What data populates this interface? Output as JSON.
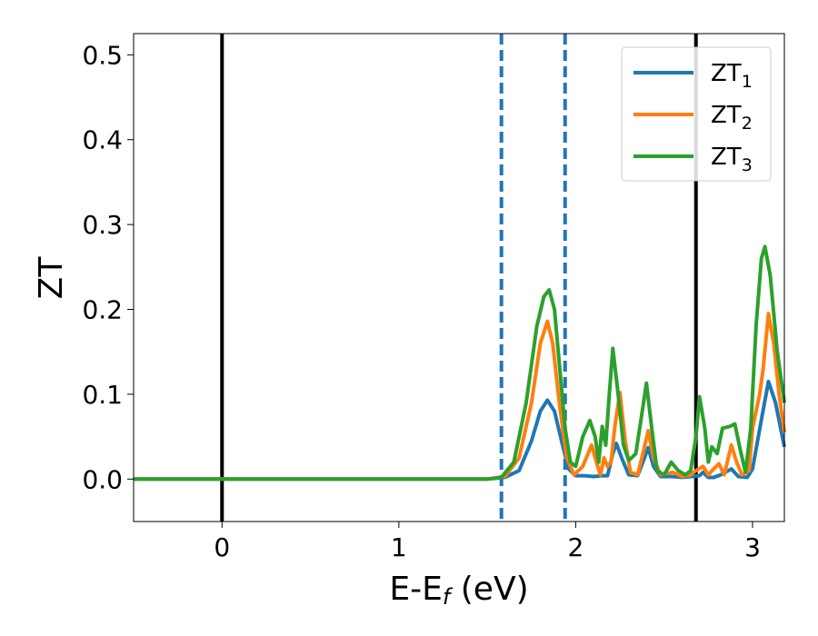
{
  "chart_data": {
    "type": "line",
    "xlabel": "E-E",
    "xlabel_sub": "f",
    "xlabel_unit": "(eV)",
    "ylabel": "ZT",
    "xlim": [
      -0.5,
      3.18
    ],
    "ylim": [
      -0.05,
      0.525
    ],
    "xticks": [
      {
        "value": 0,
        "label": "0"
      },
      {
        "value": 1,
        "label": "1"
      },
      {
        "value": 2,
        "label": "2"
      },
      {
        "value": 3,
        "label": "3"
      }
    ],
    "yticks": [
      {
        "value": 0.0,
        "label": "0.0"
      },
      {
        "value": 0.1,
        "label": "0.1"
      },
      {
        "value": 0.2,
        "label": "0.2"
      },
      {
        "value": 0.3,
        "label": "0.3"
      },
      {
        "value": 0.4,
        "label": "0.4"
      },
      {
        "value": 0.5,
        "label": "0.5"
      }
    ],
    "grid": false,
    "legend_position": "top-right",
    "vlines": [
      {
        "x": 0.0,
        "style": "solid",
        "color": "#000000"
      },
      {
        "x": 2.68,
        "style": "solid",
        "color": "#000000"
      },
      {
        "x": 1.58,
        "style": "dashed",
        "color": "#1f77b4"
      },
      {
        "x": 1.94,
        "style": "dashed",
        "color": "#1f77b4"
      }
    ],
    "series": [
      {
        "name": "ZT",
        "name_sub": "1",
        "color": "#1f77b4",
        "points": [
          [
            -0.5,
            0
          ],
          [
            1.5,
            0
          ],
          [
            1.6,
            0.002
          ],
          [
            1.68,
            0.01
          ],
          [
            1.75,
            0.045
          ],
          [
            1.8,
            0.08
          ],
          [
            1.84,
            0.093
          ],
          [
            1.88,
            0.08
          ],
          [
            1.92,
            0.045
          ],
          [
            1.96,
            0.012
          ],
          [
            2.0,
            0.004
          ],
          [
            2.05,
            0.004
          ],
          [
            2.1,
            0.003
          ],
          [
            2.15,
            0.004
          ],
          [
            2.18,
            0.004
          ],
          [
            2.21,
            0.03
          ],
          [
            2.23,
            0.042
          ],
          [
            2.26,
            0.025
          ],
          [
            2.3,
            0.005
          ],
          [
            2.35,
            0.004
          ],
          [
            2.38,
            0.02
          ],
          [
            2.41,
            0.037
          ],
          [
            2.44,
            0.015
          ],
          [
            2.48,
            0.003
          ],
          [
            2.55,
            0.003
          ],
          [
            2.6,
            0.002
          ],
          [
            2.65,
            0.003
          ],
          [
            2.7,
            0.004
          ],
          [
            2.72,
            0.008
          ],
          [
            2.75,
            0.002
          ],
          [
            2.78,
            0.002
          ],
          [
            2.82,
            0.005
          ],
          [
            2.88,
            0.012
          ],
          [
            2.92,
            0.003
          ],
          [
            2.97,
            0.002
          ],
          [
            3.0,
            0.012
          ],
          [
            3.05,
            0.07
          ],
          [
            3.09,
            0.115
          ],
          [
            3.13,
            0.09
          ],
          [
            3.18,
            0.038
          ]
        ]
      },
      {
        "name": "ZT",
        "name_sub": "2",
        "color": "#ff7f0e",
        "points": [
          [
            -0.5,
            0
          ],
          [
            1.5,
            0
          ],
          [
            1.6,
            0.003
          ],
          [
            1.68,
            0.025
          ],
          [
            1.75,
            0.09
          ],
          [
            1.8,
            0.16
          ],
          [
            1.84,
            0.186
          ],
          [
            1.87,
            0.16
          ],
          [
            1.91,
            0.085
          ],
          [
            1.95,
            0.025
          ],
          [
            1.99,
            0.005
          ],
          [
            2.04,
            0.015
          ],
          [
            2.09,
            0.04
          ],
          [
            2.12,
            0.018
          ],
          [
            2.14,
            0.005
          ],
          [
            2.16,
            0.025
          ],
          [
            2.18,
            0.015
          ],
          [
            2.2,
            0.02
          ],
          [
            2.22,
            0.06
          ],
          [
            2.25,
            0.102
          ],
          [
            2.28,
            0.045
          ],
          [
            2.31,
            0.008
          ],
          [
            2.35,
            0.005
          ],
          [
            2.38,
            0.03
          ],
          [
            2.41,
            0.057
          ],
          [
            2.44,
            0.025
          ],
          [
            2.48,
            0.005
          ],
          [
            2.55,
            0.008
          ],
          [
            2.6,
            0.003
          ],
          [
            2.65,
            0.005
          ],
          [
            2.68,
            0.01
          ],
          [
            2.72,
            0.015
          ],
          [
            2.75,
            0.005
          ],
          [
            2.78,
            0.012
          ],
          [
            2.81,
            0.018
          ],
          [
            2.84,
            0.005
          ],
          [
            2.88,
            0.04
          ],
          [
            2.91,
            0.02
          ],
          [
            2.94,
            0.005
          ],
          [
            2.98,
            0.01
          ],
          [
            3.0,
            0.06
          ],
          [
            3.04,
            0.1
          ],
          [
            3.06,
            0.13
          ],
          [
            3.09,
            0.195
          ],
          [
            3.12,
            0.16
          ],
          [
            3.15,
            0.1
          ],
          [
            3.18,
            0.055
          ]
        ]
      },
      {
        "name": "ZT",
        "name_sub": "3",
        "color": "#2ca02c",
        "points": [
          [
            -0.5,
            0
          ],
          [
            1.5,
            0
          ],
          [
            1.58,
            0.002
          ],
          [
            1.65,
            0.02
          ],
          [
            1.72,
            0.09
          ],
          [
            1.78,
            0.18
          ],
          [
            1.82,
            0.215
          ],
          [
            1.85,
            0.223
          ],
          [
            1.88,
            0.2
          ],
          [
            1.91,
            0.13
          ],
          [
            1.94,
            0.06
          ],
          [
            1.97,
            0.02
          ],
          [
            2.0,
            0.015
          ],
          [
            2.04,
            0.05
          ],
          [
            2.08,
            0.069
          ],
          [
            2.11,
            0.05
          ],
          [
            2.13,
            0.02
          ],
          [
            2.15,
            0.062
          ],
          [
            2.17,
            0.04
          ],
          [
            2.19,
            0.1
          ],
          [
            2.21,
            0.154
          ],
          [
            2.24,
            0.1
          ],
          [
            2.27,
            0.04
          ],
          [
            2.3,
            0.022
          ],
          [
            2.34,
            0.03
          ],
          [
            2.38,
            0.085
          ],
          [
            2.4,
            0.113
          ],
          [
            2.43,
            0.06
          ],
          [
            2.46,
            0.01
          ],
          [
            2.5,
            0.005
          ],
          [
            2.54,
            0.02
          ],
          [
            2.58,
            0.01
          ],
          [
            2.62,
            0.005
          ],
          [
            2.65,
            0.01
          ],
          [
            2.68,
            0.05
          ],
          [
            2.7,
            0.097
          ],
          [
            2.73,
            0.06
          ],
          [
            2.75,
            0.02
          ],
          [
            2.77,
            0.038
          ],
          [
            2.8,
            0.03
          ],
          [
            2.83,
            0.06
          ],
          [
            2.87,
            0.062
          ],
          [
            2.9,
            0.065
          ],
          [
            2.93,
            0.035
          ],
          [
            2.96,
            0.008
          ],
          [
            2.99,
            0.06
          ],
          [
            3.02,
            0.18
          ],
          [
            3.05,
            0.26
          ],
          [
            3.07,
            0.274
          ],
          [
            3.1,
            0.24
          ],
          [
            3.14,
            0.15
          ],
          [
            3.18,
            0.09
          ]
        ]
      }
    ]
  }
}
